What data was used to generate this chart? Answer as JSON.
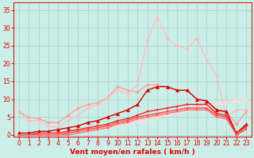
{
  "title": "",
  "xlabel": "Vent moyen/en rafales ( km/h )",
  "ylabel": "",
  "bg_color": "#cceee8",
  "grid_color": "#aad4ce",
  "x": [
    0,
    1,
    2,
    3,
    4,
    5,
    6,
    7,
    8,
    9,
    10,
    11,
    12,
    13,
    14,
    15,
    16,
    17,
    18,
    19,
    20,
    21,
    22,
    23
  ],
  "ylim": [
    -0.5,
    37
  ],
  "xlim": [
    -0.5,
    23.5
  ],
  "lines": [
    {
      "y": [
        6.5,
        5.0,
        4.5,
        3.5,
        3.5,
        5.5,
        7.5,
        8.5,
        9.0,
        10.5,
        13.5,
        12.5,
        12.0,
        14.0,
        14.0,
        13.5,
        12.5,
        12.5,
        10.0,
        9.5,
        6.5,
        6.5,
        3.0,
        6.5
      ],
      "color": "#ff9999",
      "lw": 0.9,
      "marker": "D",
      "ms": 2.0
    },
    {
      "y": [
        6.5,
        4.0,
        4.0,
        2.5,
        2.0,
        4.0,
        5.5,
        7.5,
        8.5,
        10.5,
        12.5,
        11.5,
        14.0,
        26.5,
        33.0,
        27.0,
        25.0,
        24.0,
        27.0,
        21.0,
        16.5,
        5.0,
        7.0,
        7.0
      ],
      "color": "#ffbbbb",
      "lw": 0.9,
      "marker": "D",
      "ms": 2.0
    },
    {
      "y": [
        0.0,
        0.0,
        0.2,
        0.4,
        0.6,
        0.9,
        1.2,
        1.6,
        2.0,
        2.5,
        3.0,
        3.5,
        4.0,
        4.6,
        5.2,
        5.8,
        6.5,
        7.2,
        7.9,
        8.5,
        9.0,
        9.5,
        9.8,
        10.0
      ],
      "color": "#ffcccc",
      "lw": 0.9,
      "marker": "D",
      "ms": 1.8
    },
    {
      "y": [
        0.0,
        0.0,
        0.1,
        0.3,
        0.5,
        0.7,
        1.0,
        1.3,
        1.7,
        2.1,
        2.6,
        3.1,
        3.7,
        4.3,
        4.9,
        5.5,
        6.2,
        6.9,
        7.5,
        8.1,
        8.7,
        9.2,
        9.5,
        9.8
      ],
      "color": "#ffdddd",
      "lw": 0.9,
      "marker": "D",
      "ms": 1.8
    },
    {
      "y": [
        0.5,
        0.5,
        1.0,
        1.0,
        1.5,
        2.0,
        2.5,
        3.5,
        4.0,
        5.0,
        6.0,
        7.0,
        8.5,
        12.5,
        13.5,
        13.5,
        12.5,
        12.5,
        10.0,
        9.5,
        7.0,
        6.5,
        0.5,
        3.0
      ],
      "color": "#cc0000",
      "lw": 1.0,
      "marker": "^",
      "ms": 3.0
    },
    {
      "y": [
        0.0,
        0.0,
        0.5,
        0.5,
        0.5,
        1.0,
        1.5,
        2.0,
        2.5,
        3.0,
        4.0,
        4.5,
        5.5,
        6.5,
        7.0,
        7.5,
        8.0,
        8.5,
        8.5,
        8.5,
        6.0,
        5.5,
        0.5,
        2.5
      ],
      "color": "#ee2222",
      "lw": 1.0,
      "marker": "s",
      "ms": 2.0
    },
    {
      "y": [
        0.0,
        0.0,
        0.0,
        0.0,
        0.0,
        0.5,
        1.0,
        1.5,
        2.0,
        2.5,
        3.5,
        4.0,
        5.0,
        5.5,
        6.0,
        6.5,
        7.0,
        7.5,
        7.5,
        7.5,
        5.5,
        5.0,
        0.0,
        2.0
      ],
      "color": "#ff4444",
      "lw": 1.0,
      "marker": "s",
      "ms": 2.0
    },
    {
      "y": [
        0.0,
        0.0,
        0.0,
        0.0,
        0.0,
        0.0,
        0.5,
        1.0,
        1.5,
        2.0,
        3.0,
        3.5,
        4.5,
        5.0,
        5.5,
        6.0,
        6.5,
        7.0,
        7.0,
        7.0,
        5.0,
        4.5,
        0.0,
        1.5
      ],
      "color": "#ff6666",
      "lw": 0.9,
      "marker": "s",
      "ms": 1.8
    }
  ],
  "yticks": [
    0,
    5,
    10,
    15,
    20,
    25,
    30,
    35
  ],
  "xticks": [
    0,
    1,
    2,
    3,
    4,
    5,
    6,
    7,
    8,
    9,
    10,
    11,
    12,
    13,
    14,
    15,
    16,
    17,
    18,
    19,
    20,
    21,
    22,
    23
  ],
  "tick_color": "#dd0000",
  "label_color": "#dd0000",
  "label_fontsize": 6.5,
  "tick_fontsize": 5.5
}
